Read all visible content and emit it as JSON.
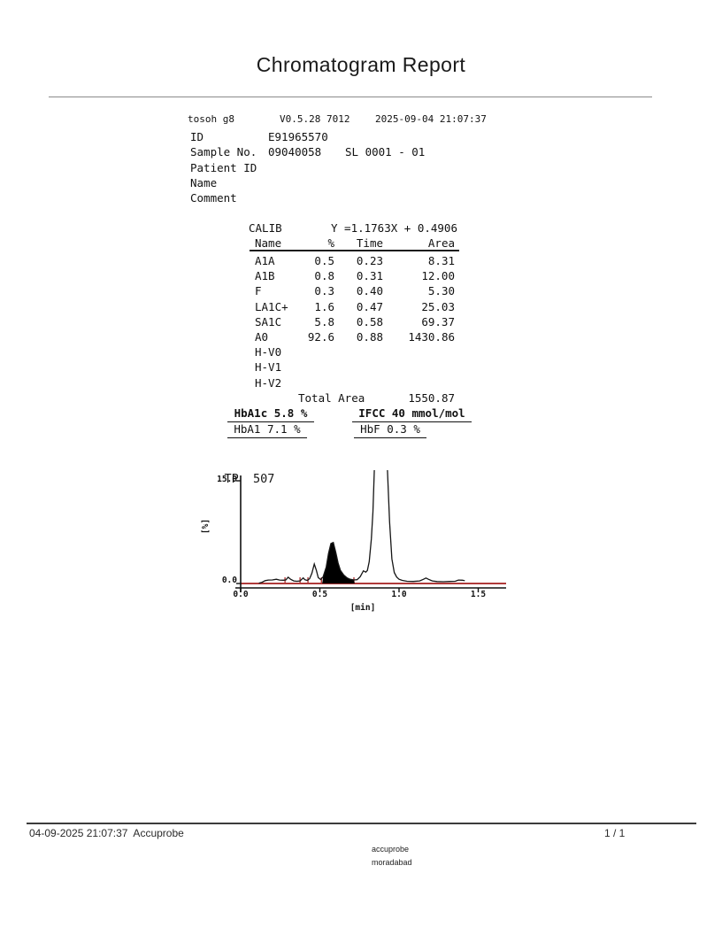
{
  "page_title": "Chromatogram Report",
  "header": {
    "device": "tosoh g8",
    "firmware": "V0.5.28 7012",
    "datetime": "2025-09-04 21:07:37",
    "fields": [
      {
        "label": "ID",
        "value": "E91965570",
        "extra": ""
      },
      {
        "label": "Sample No.",
        "value": "09040058",
        "extra": "SL 0001 - 01"
      },
      {
        "label": "Patient ID",
        "value": "",
        "extra": ""
      },
      {
        "label": "Name",
        "value": "",
        "extra": ""
      },
      {
        "label": "Comment",
        "value": "",
        "extra": ""
      }
    ]
  },
  "calibration": {
    "label": "CALIB",
    "equation": "Y =1.1763X + 0.4906"
  },
  "peak_table": {
    "headers": [
      "Name",
      "%",
      "Time",
      "Area"
    ],
    "rows": [
      [
        "A1A",
        "0.5",
        "0.23",
        "8.31"
      ],
      [
        "A1B",
        "0.8",
        "0.31",
        "12.00"
      ],
      [
        "F",
        "0.3",
        "0.40",
        "5.30"
      ],
      [
        "LA1C+",
        "1.6",
        "0.47",
        "25.03"
      ],
      [
        "SA1C",
        "5.8",
        "0.58",
        "69.37"
      ],
      [
        "A0",
        "92.6",
        "0.88",
        "1430.86"
      ],
      [
        "H-V0",
        "",
        "",
        ""
      ],
      [
        "H-V1",
        "",
        "",
        ""
      ],
      [
        "H-V2",
        "",
        "",
        ""
      ]
    ],
    "total_label": "Total Area",
    "total_value": "1550.87"
  },
  "results": {
    "hba1c": "HbA1c 5.8 %",
    "ifcc": "IFCC 40 mmol/mol",
    "hba1": "HbA1 7.1 %",
    "hbf": "HbF 0.3 %"
  },
  "chart_data": {
    "type": "line",
    "title_label": "TP",
    "title_value": "507",
    "xlabel": "[min]",
    "ylabel": "[%]",
    "xlim": [
      0.0,
      1.68
    ],
    "ylim": [
      0.0,
      15.0
    ],
    "x_ticks": [
      "0.0",
      "0.5",
      "1.0",
      "1.5"
    ],
    "y_ticks": [
      "0.0",
      "15.0"
    ],
    "grid": false,
    "legend": false,
    "trace_color": "#151515",
    "baseline_color": "#b03a3a",
    "fill_color": "#000000",
    "peak_boundaries_min": [
      0.28,
      0.375,
      0.425,
      0.51,
      0.715
    ],
    "filled_region_min": [
      0.515,
      0.72
    ],
    "series": [
      {
        "name": "absorbance",
        "points": [
          [
            0.115,
            0.05
          ],
          [
            0.135,
            0.18
          ],
          [
            0.155,
            0.42
          ],
          [
            0.175,
            0.5
          ],
          [
            0.2,
            0.52
          ],
          [
            0.225,
            0.62
          ],
          [
            0.245,
            0.5
          ],
          [
            0.27,
            0.48
          ],
          [
            0.285,
            0.52
          ],
          [
            0.3,
            0.92
          ],
          [
            0.315,
            0.62
          ],
          [
            0.335,
            0.38
          ],
          [
            0.355,
            0.32
          ],
          [
            0.375,
            0.38
          ],
          [
            0.395,
            0.82
          ],
          [
            0.405,
            0.55
          ],
          [
            0.42,
            0.45
          ],
          [
            0.435,
            0.7
          ],
          [
            0.45,
            1.5
          ],
          [
            0.465,
            2.85
          ],
          [
            0.478,
            1.9
          ],
          [
            0.49,
            0.85
          ],
          [
            0.505,
            0.58
          ],
          [
            0.52,
            0.95
          ],
          [
            0.54,
            2.4
          ],
          [
            0.555,
            4.4
          ],
          [
            0.57,
            5.85
          ],
          [
            0.585,
            6.0
          ],
          [
            0.6,
            4.6
          ],
          [
            0.615,
            3.0
          ],
          [
            0.63,
            1.9
          ],
          [
            0.65,
            1.25
          ],
          [
            0.67,
            0.85
          ],
          [
            0.69,
            0.62
          ],
          [
            0.715,
            0.52
          ],
          [
            0.735,
            0.55
          ],
          [
            0.755,
            1.0
          ],
          [
            0.775,
            1.85
          ],
          [
            0.79,
            1.65
          ],
          [
            0.8,
            1.9
          ],
          [
            0.812,
            3.2
          ],
          [
            0.825,
            6.5
          ],
          [
            0.835,
            10.5
          ],
          [
            0.845,
            17.5
          ],
          [
            0.925,
            17.5
          ],
          [
            0.94,
            9.0
          ],
          [
            0.955,
            3.6
          ],
          [
            0.97,
            1.6
          ],
          [
            0.985,
            0.95
          ],
          [
            1.0,
            0.62
          ],
          [
            1.02,
            0.45
          ],
          [
            1.05,
            0.32
          ],
          [
            1.09,
            0.3
          ],
          [
            1.13,
            0.38
          ],
          [
            1.155,
            0.62
          ],
          [
            1.17,
            0.8
          ],
          [
            1.185,
            0.62
          ],
          [
            1.21,
            0.38
          ],
          [
            1.24,
            0.28
          ],
          [
            1.28,
            0.26
          ],
          [
            1.32,
            0.3
          ],
          [
            1.355,
            0.32
          ],
          [
            1.375,
            0.5
          ],
          [
            1.4,
            0.48
          ],
          [
            1.415,
            0.4
          ]
        ]
      }
    ]
  },
  "footer": {
    "left": "04-09-2025 21:07:37  Accuprobe",
    "page": "1 / 1",
    "lab_line1": "accuprobe",
    "lab_line2": "moradabad"
  }
}
